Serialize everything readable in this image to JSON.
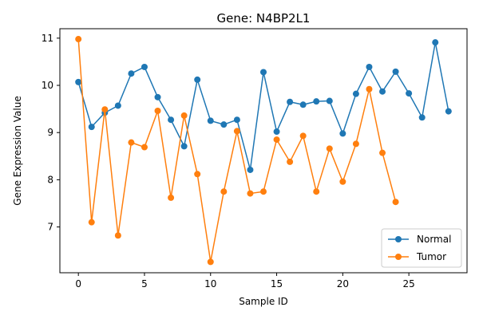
{
  "chart_data": {
    "type": "line",
    "title": "Gene: N4BP2L1",
    "xlabel": "Sample ID",
    "ylabel": "Gene Expression Value",
    "xlim": [
      -1.4,
      29.4
    ],
    "ylim": [
      6.03,
      11.2
    ],
    "x_ticks": [
      0,
      5,
      10,
      15,
      20,
      25
    ],
    "y_ticks": [
      7,
      8,
      9,
      10,
      11
    ],
    "grid": false,
    "legend_position": "lower-right",
    "series": [
      {
        "name": "Normal",
        "color": "#1f77b4",
        "x": [
          0,
          1,
          2,
          3,
          4,
          5,
          6,
          7,
          8,
          9,
          10,
          11,
          12,
          13,
          14,
          15,
          16,
          17,
          18,
          19,
          20,
          21,
          22,
          23,
          24,
          25,
          26,
          27,
          28
        ],
        "values": [
          10.07,
          9.12,
          9.42,
          9.57,
          10.25,
          10.39,
          9.75,
          9.27,
          8.71,
          10.12,
          9.25,
          9.17,
          9.27,
          8.21,
          10.28,
          9.02,
          9.65,
          9.59,
          9.66,
          9.67,
          8.98,
          9.82,
          10.39,
          9.87,
          10.29,
          9.83,
          9.32,
          10.91,
          9.45
        ]
      },
      {
        "name": "Tumor",
        "color": "#ff7f0e",
        "x": [
          0,
          1,
          2,
          3,
          4,
          5,
          6,
          7,
          8,
          9,
          10,
          11,
          12,
          13,
          14,
          15,
          16,
          17,
          18,
          19,
          20,
          21,
          22,
          23,
          24
        ],
        "values": [
          10.98,
          7.1,
          9.49,
          6.82,
          8.79,
          8.69,
          9.46,
          7.62,
          9.36,
          8.12,
          6.26,
          7.75,
          9.03,
          7.71,
          7.75,
          8.85,
          8.38,
          8.93,
          7.75,
          8.66,
          7.96,
          8.76,
          9.92,
          8.57,
          7.53
        ]
      }
    ]
  }
}
